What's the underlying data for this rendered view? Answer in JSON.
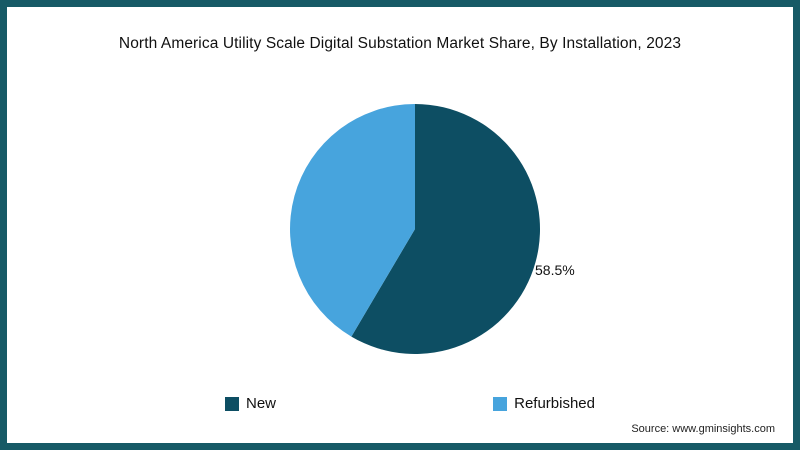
{
  "title": "North America Utility Scale Digital Substation Market Share, By Installation, 2023",
  "source_label": "Source: www.gminsights.com",
  "colors": {
    "frame_border": "#175a66",
    "new_slice": "#0d4e63",
    "refurbished_slice": "#47a4dd"
  },
  "chart_data": {
    "type": "pie",
    "title": "North America Utility Scale Digital Substation Market Share, By Installation, 2023",
    "slices": [
      {
        "label": "New",
        "value": 58.5,
        "color": "#0d4e63"
      },
      {
        "label": "Refurbished",
        "value": 41.5,
        "color": "#47a4dd"
      }
    ],
    "data_label": "58.5%",
    "data_label_slice": "New",
    "start_angle_deg": -90,
    "direction": "clockwise",
    "legend_position": "bottom"
  },
  "legend": {
    "items": [
      {
        "label": "New",
        "color": "#0d4e63"
      },
      {
        "label": "Refurbished",
        "color": "#47a4dd"
      }
    ]
  }
}
